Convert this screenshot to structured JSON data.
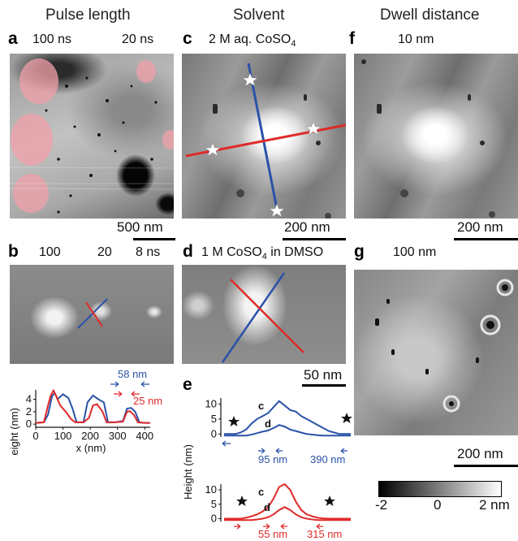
{
  "columns": {
    "pulse_length": "Pulse length",
    "solvent": "Solvent",
    "dwell_distance": "Dwell distance"
  },
  "panels": {
    "a": {
      "label": "a",
      "left_caption": "100 ns",
      "right_caption": "20 ns",
      "scale": "500 nm"
    },
    "b": {
      "label": "b",
      "captions": [
        "100",
        "20",
        "8 ns"
      ]
    },
    "c": {
      "label": "c",
      "caption": "2 M aq. CoSO",
      "caption_sub": "4",
      "scale": "200 nm"
    },
    "d": {
      "label": "d",
      "caption_pre": "1 M CoSO",
      "caption_sub": "4",
      "caption_post": " in DMSO",
      "scale": "50 nm"
    },
    "e": {
      "label": "e"
    },
    "f": {
      "label": "f",
      "caption": "10 nm",
      "scale": "200 nm"
    },
    "g": {
      "label": "g",
      "caption": "100 nm",
      "scale": "200 nm"
    }
  },
  "colorbar": {
    "tick_labels": [
      "-2",
      "0",
      "2 nm"
    ],
    "min": -2,
    "max": 2
  },
  "colors": {
    "blue": "#2a52a8",
    "red": "#e02a2a",
    "pink": "#f0a0a8"
  },
  "chart_data": [
    {
      "panel": "b",
      "type": "line",
      "xlabel": "x (nm)",
      "ylabel": "Height (nm)",
      "xlim": [
        0,
        420
      ],
      "ylim": [
        -0.5,
        5.5
      ],
      "xticks": [
        "0",
        "100",
        "200",
        "300",
        "400"
      ],
      "yticks": [
        "0",
        "2",
        "4"
      ],
      "series": [
        {
          "color": "#2a52a8",
          "x": [
            0,
            30,
            45,
            60,
            70,
            80,
            100,
            120,
            135,
            150,
            175,
            190,
            210,
            230,
            250,
            265,
            290,
            320,
            335,
            350,
            365,
            380,
            400,
            420
          ],
          "y": [
            0.2,
            0.3,
            1.5,
            4.5,
            5.0,
            4.0,
            4.8,
            4.2,
            2.5,
            0.3,
            0.3,
            3.5,
            4.6,
            4.0,
            3.5,
            0.3,
            0.3,
            0.5,
            2.5,
            2.6,
            2.0,
            0.3,
            0.2,
            0.2
          ]
        },
        {
          "color": "#e02a2a",
          "x": [
            0,
            30,
            45,
            55,
            65,
            75,
            90,
            110,
            130,
            145,
            160,
            175,
            195,
            210,
            225,
            245,
            260,
            290,
            320,
            335,
            345,
            360,
            375,
            400,
            420
          ],
          "y": [
            0.2,
            0.3,
            3.0,
            4.6,
            5.4,
            4.5,
            3.0,
            2.0,
            0.8,
            0.3,
            0.3,
            0.3,
            1.0,
            3.0,
            3.2,
            2.0,
            0.3,
            0.3,
            0.4,
            2.0,
            2.1,
            1.5,
            0.3,
            0.2,
            0.2
          ]
        }
      ],
      "annotations": [
        {
          "text": "58 nm",
          "color": "#2a52a8"
        },
        {
          "text": "25 nm",
          "color": "#e02a2a"
        }
      ]
    },
    {
      "panel": "e",
      "type": "line",
      "ylabel": "Height (nm)",
      "plots": [
        {
          "yticks": [
            "0",
            "5",
            "10"
          ],
          "ylim": [
            -1,
            12
          ],
          "color": "#2a52a8",
          "series": [
            {
              "label": "c",
              "y": [
                0,
                0,
                0,
                0.5,
                1.5,
                3.5,
                5,
                6,
                7,
                9,
                11,
                9.5,
                8,
                7.5,
                6,
                5,
                4,
                3,
                2,
                1,
                0.5,
                0,
                0,
                0
              ]
            },
            {
              "label": "d",
              "y": [
                -0.5,
                -0.5,
                -0.5,
                -0.5,
                -0.5,
                -0.2,
                0.3,
                0.8,
                1.2,
                2,
                3,
                2.5,
                1.5,
                1,
                0.5,
                0,
                -0.2,
                -0.4,
                -0.5,
                -0.5,
                -0.5,
                -0.5,
                -0.5,
                -0.5
              ]
            }
          ],
          "annotations": [
            "95 nm",
            "390 nm"
          ]
        },
        {
          "yticks": [
            "0",
            "5",
            "10"
          ],
          "ylim": [
            -1,
            12
          ],
          "color": "#e02a2a",
          "series": [
            {
              "label": "c",
              "y": [
                0,
                0,
                0,
                0,
                0.3,
                0.8,
                1.5,
                2.5,
                4,
                7,
                11,
                12,
                10,
                6,
                3,
                1.5,
                0.8,
                0.3,
                0.1,
                0,
                0,
                0,
                0,
                0
              ]
            },
            {
              "label": "d",
              "y": [
                -0.5,
                -0.5,
                -0.5,
                -0.5,
                -0.5,
                -0.5,
                -0.3,
                0,
                0.5,
                1.5,
                3,
                4,
                3,
                1.5,
                0.5,
                0,
                -0.3,
                -0.5,
                -0.5,
                -0.5,
                -0.5,
                -0.5,
                -0.5,
                -0.5
              ]
            }
          ],
          "annotations": [
            "55 nm",
            "315 nm"
          ]
        }
      ]
    }
  ]
}
